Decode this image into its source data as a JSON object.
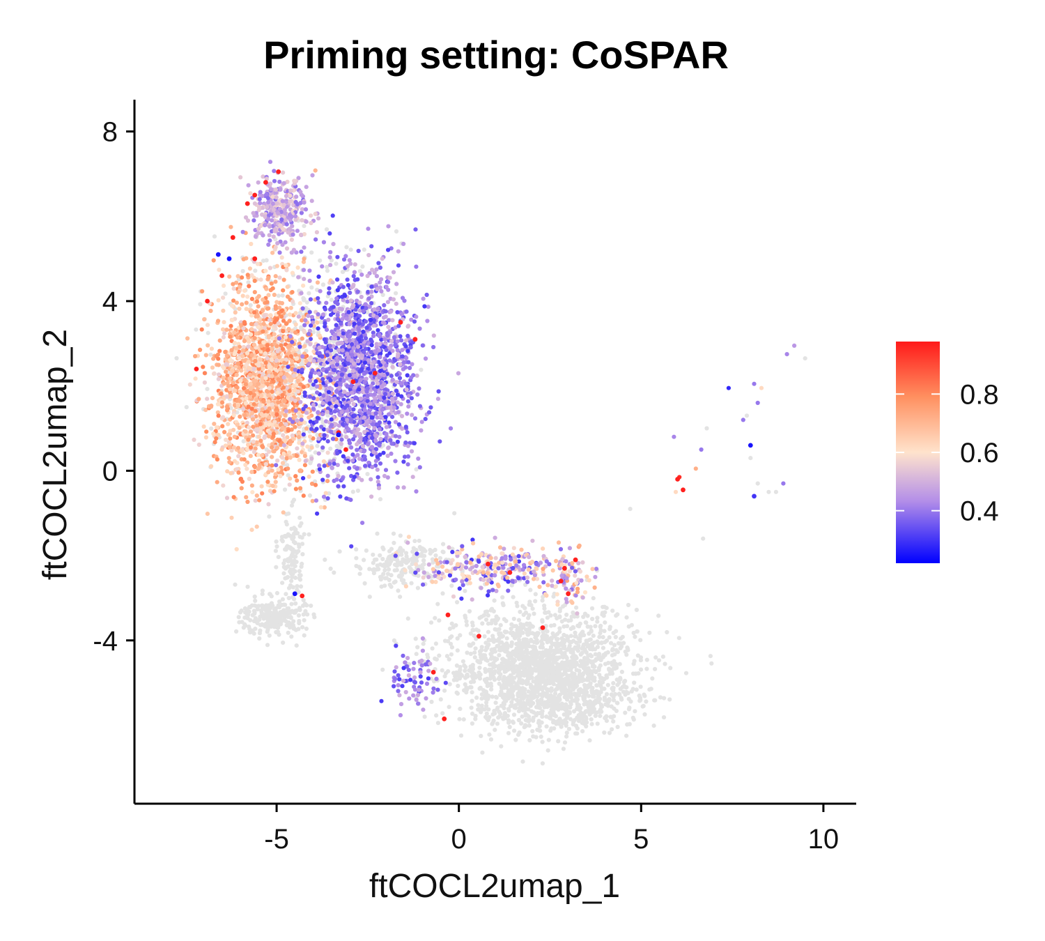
{
  "chart_data": {
    "type": "scatter",
    "title": "Priming setting: CoSPAR",
    "xlabel": "ftCOCL2umap_1",
    "ylabel": "ftCOCL2umap_2",
    "xlim": [
      -8.9,
      10.9
    ],
    "ylim": [
      -7.85,
      8.75
    ],
    "xticks": [
      -5,
      0,
      5,
      10
    ],
    "xtick_labels": [
      "-5",
      "0",
      "5",
      "10"
    ],
    "yticks": [
      8,
      4,
      0,
      -4
    ],
    "ytick_labels": [
      "8",
      "4",
      "0",
      "-4"
    ],
    "legend": {
      "type": "colorbar",
      "position": "right",
      "range": [
        0.22,
        0.98
      ],
      "ticks": [
        0.8,
        0.6,
        0.4
      ],
      "tick_labels": [
        "0.8",
        "0.6",
        "0.4"
      ],
      "colors": {
        "low": "#0000ff",
        "mid_low": "#b38ee8",
        "mid": "#ffe3cc",
        "mid_high": "#ff9060",
        "high": "#ff1a1a"
      }
    },
    "na_color": "#e3e3e3",
    "point_groups": {
      "grey_regions": [
        {
          "name": "bottom-main-blob",
          "cx": 2.2,
          "cy": -4.6,
          "sx": 1.65,
          "sy": 0.85,
          "n": 1500
        },
        {
          "name": "bottom-main-blob-core",
          "cx": 2.8,
          "cy": -5.3,
          "sx": 1.3,
          "sy": 0.55,
          "n": 500
        },
        {
          "name": "bottom-left-blob",
          "cx": -5.1,
          "cy": -3.45,
          "sx": 0.55,
          "sy": 0.3,
          "n": 230
        },
        {
          "name": "stem-connector",
          "cx": -4.6,
          "cy": -2.0,
          "sx": 0.22,
          "sy": 0.7,
          "n": 120
        },
        {
          "name": "bridge-diagonal",
          "cx": -1.5,
          "cy": -2.2,
          "sx": 0.9,
          "sy": 0.35,
          "n": 200
        },
        {
          "name": "upper-blob-underlay",
          "cx": -4.1,
          "cy": 2.4,
          "sx": 1.55,
          "sy": 1.7,
          "n": 500
        }
      ],
      "colored_regions": [
        {
          "name": "left-peach-blob",
          "cx": -5.3,
          "cy": 2.1,
          "sx": 0.95,
          "sy": 1.55,
          "vmin": 0.55,
          "vmax": 0.82,
          "n": 1700
        },
        {
          "name": "right-purple-blob",
          "cx": -2.7,
          "cy": 2.2,
          "sx": 1.0,
          "sy": 1.6,
          "vmin": 0.3,
          "vmax": 0.52,
          "n": 1600
        },
        {
          "name": "top-cap",
          "cx": -4.9,
          "cy": 6.1,
          "sx": 0.5,
          "sy": 0.55,
          "vmin": 0.38,
          "vmax": 0.58,
          "n": 320
        },
        {
          "name": "bridge-colored",
          "cx": 0.8,
          "cy": -2.3,
          "sx": 1.4,
          "sy": 0.35,
          "vmin": 0.3,
          "vmax": 0.7,
          "n": 260
        },
        {
          "name": "lower-right-cluster",
          "cx": 3.0,
          "cy": -2.5,
          "sx": 0.4,
          "sy": 0.5,
          "vmin": 0.35,
          "vmax": 0.75,
          "n": 80
        },
        {
          "name": "lower-left-arc",
          "cx": -1.2,
          "cy": -4.9,
          "sx": 0.6,
          "sy": 0.45,
          "vmin": 0.3,
          "vmax": 0.5,
          "n": 70
        }
      ],
      "highlight_points": [
        {
          "x": -5.6,
          "y": 6.5,
          "v": 0.97
        },
        {
          "x": -5.3,
          "y": 6.8,
          "v": 0.97
        },
        {
          "x": -4.95,
          "y": 7.05,
          "v": 0.97
        },
        {
          "x": -6.2,
          "y": 5.5,
          "v": 0.97
        },
        {
          "x": -6.5,
          "y": 4.6,
          "v": 0.97
        },
        {
          "x": -6.9,
          "y": 4.0,
          "v": 0.97
        },
        {
          "x": -7.2,
          "y": 2.4,
          "v": 0.97
        },
        {
          "x": -5.6,
          "y": 5.0,
          "v": 0.97
        },
        {
          "x": -5.8,
          "y": 6.3,
          "v": 0.97
        },
        {
          "x": -3.3,
          "y": 0.9,
          "v": 0.97
        },
        {
          "x": -2.9,
          "y": 2.1,
          "v": 0.97
        },
        {
          "x": -2.3,
          "y": 2.3,
          "v": 0.97
        },
        {
          "x": -1.2,
          "y": 3.1,
          "v": 0.97
        },
        {
          "x": -3.1,
          "y": 0.5,
          "v": 0.97
        },
        {
          "x": -1.6,
          "y": 3.5,
          "v": 0.97
        },
        {
          "x": 0.8,
          "y": -2.2,
          "v": 0.97
        },
        {
          "x": 1.4,
          "y": -2.4,
          "v": 0.97
        },
        {
          "x": 2.8,
          "y": -2.6,
          "v": 0.97
        },
        {
          "x": 3.0,
          "y": -2.9,
          "v": 0.97
        },
        {
          "x": 3.2,
          "y": -2.1,
          "v": 0.97
        },
        {
          "x": 2.3,
          "y": -3.7,
          "v": 0.97
        },
        {
          "x": -0.3,
          "y": -3.4,
          "v": 0.97
        },
        {
          "x": -0.7,
          "y": -4.75,
          "v": 0.97
        },
        {
          "x": -0.4,
          "y": -5.85,
          "v": 0.97
        },
        {
          "x": 6.0,
          "y": -0.2,
          "v": 0.97
        },
        {
          "x": 6.15,
          "y": -0.45,
          "v": 0.97
        },
        {
          "x": -4.3,
          "y": -2.95,
          "v": 0.97
        },
        {
          "x": 0.55,
          "y": -3.9,
          "v": 0.97
        },
        {
          "x": 2.9,
          "y": -2.3,
          "v": 0.97
        },
        {
          "x": -6.6,
          "y": 5.1,
          "v": 0.25
        },
        {
          "x": -6.3,
          "y": 5.0,
          "v": 0.25
        },
        {
          "x": -3.3,
          "y": 0.85,
          "v": 0.25
        },
        {
          "x": -4.5,
          "y": -2.9,
          "v": 0.25
        },
        {
          "x": 8.1,
          "y": -0.6,
          "v": 0.3
        },
        {
          "x": 8.0,
          "y": 0.6,
          "v": 0.25
        }
      ],
      "outlier_points": [
        {
          "x": 9.0,
          "y": 2.75,
          "v": 0.42
        },
        {
          "x": 9.2,
          "y": 2.95,
          "v": 0.45
        },
        {
          "x": 9.5,
          "y": 2.65,
          "v": -1
        },
        {
          "x": 7.4,
          "y": 1.95,
          "v": 0.28
        },
        {
          "x": 8.1,
          "y": 2.05,
          "v": 0.4
        },
        {
          "x": 8.3,
          "y": 1.95,
          "v": 0.62
        },
        {
          "x": 7.9,
          "y": 1.3,
          "v": -1
        },
        {
          "x": 8.2,
          "y": 1.6,
          "v": 0.4
        },
        {
          "x": 7.8,
          "y": 1.2,
          "v": 0.4
        },
        {
          "x": 6.65,
          "y": 0.5,
          "v": 0.4
        },
        {
          "x": 5.9,
          "y": 0.8,
          "v": 0.42
        },
        {
          "x": 6.5,
          "y": 0.05,
          "v": 0.72
        },
        {
          "x": 5.95,
          "y": -0.5,
          "v": 0.62
        },
        {
          "x": 6.05,
          "y": -0.15,
          "v": 0.95
        },
        {
          "x": 8.9,
          "y": -0.3,
          "v": 0.4
        },
        {
          "x": 8.7,
          "y": -0.5,
          "v": -1
        },
        {
          "x": 8.5,
          "y": -0.5,
          "v": -1
        },
        {
          "x": 8.2,
          "y": -0.3,
          "v": -1
        },
        {
          "x": 6.7,
          "y": -1.6,
          "v": -1
        },
        {
          "x": 4.7,
          "y": -0.9,
          "v": -1
        },
        {
          "x": 6.8,
          "y": 1.0,
          "v": -1
        },
        {
          "x": 8.0,
          "y": 0.3,
          "v": -1
        }
      ]
    }
  }
}
